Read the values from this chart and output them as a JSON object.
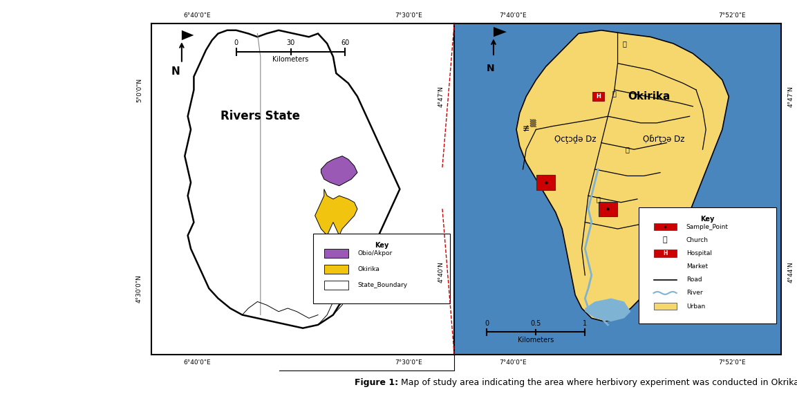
{
  "fig_width": 11.53,
  "fig_height": 5.7,
  "bg_color": "#ffffff",
  "caption_bold": "Figure 1:",
  "caption_normal": " Map of study area indicating the area where herbivory experiment was conducted in Okrika, Niger Delta, Nigeria.",
  "caption_fontsize": 9,
  "left_panel": {
    "title": "Rivers State",
    "title_fontsize": 12,
    "bg_color": "#ffffff",
    "border_color": "#000000",
    "state_fill": "#ffffff",
    "state_edge": "#000000",
    "obio_color": "#9B59B6",
    "okrika_color": "#F1C40F",
    "scale_label": "Kilometers",
    "key_items": [
      {
        "label": "Obio/Akpor",
        "color": "#9B59B6"
      },
      {
        "label": "Okirika",
        "color": "#F1C40F"
      },
      {
        "label": "State_Boundary",
        "color": "#ffffff"
      }
    ],
    "coord_top_left": "6°40'0\"E",
    "coord_top_right": "7°30'0\"E",
    "coord_bot_left": "6°40'0\"E",
    "coord_bot_right": "7°30'0\"E",
    "coord_left_top": "5°0'0\"N",
    "coord_left_bot": "4°30'0\"N"
  },
  "right_panel": {
    "bg_color": "#4A86BE",
    "urban_color": "#F5D76E",
    "road_color": "#000000",
    "river_color": "#7FB3D3",
    "label_okirika": "Okirika",
    "key_items": [
      {
        "label": "Sample_Point",
        "color": "#CC0000"
      },
      {
        "label": "Church",
        "color": "#000000"
      },
      {
        "label": "Hospital",
        "color": "#CC0000"
      },
      {
        "label": "Market",
        "color": "#000000"
      },
      {
        "label": "Road",
        "color": "#000000"
      },
      {
        "label": "River",
        "color": "#7FB3D3"
      },
      {
        "label": "Urban",
        "color": "#F5D76E"
      }
    ],
    "coord_top_left": "7°40'0\"E",
    "coord_top_right": "7°52'0\"E",
    "coord_bot_left": "7°40'0\"E",
    "coord_bot_right": "7°52'0\"E",
    "coord_right_top": "4°47'N",
    "coord_right_bot": "4°44'N",
    "coord_left_top": "4°47'N",
    "coord_left_bot": "4°40'N",
    "scale_label": "Kilometers"
  },
  "connector_color": "#CC0000"
}
